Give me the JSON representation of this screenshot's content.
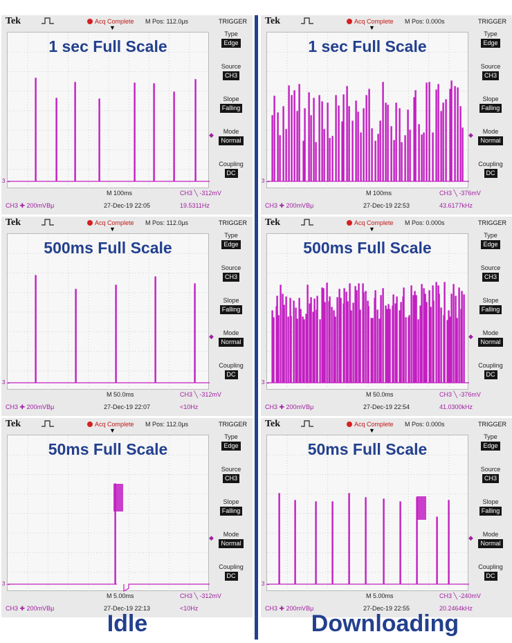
{
  "labels": {
    "left": "Idle",
    "right": "Downloading"
  },
  "common": {
    "brand": "Tek",
    "acq": "Acq Complete",
    "trigger": "TRIGGER",
    "menu": [
      {
        "label": "Type",
        "value": "Edge"
      },
      {
        "label": "Source",
        "value": "CH3"
      },
      {
        "label": "Slope",
        "value": "Falling"
      },
      {
        "label": "Mode",
        "value": "Normal"
      },
      {
        "label": "Coupling",
        "value": "DC"
      }
    ],
    "ch_scale": "CH3 ✚ 200mVΒμ",
    "gnd": "3→",
    "trig_arrow": "◆"
  },
  "panels": [
    {
      "id": "idle-1s",
      "title": "1 sec Full Scale",
      "mpos": "M Pos: 112.0μs",
      "timebase": "M 100ms",
      "date": "27-Dec-19 22:05",
      "trig": "CH3 ╲ -312mV",
      "freq": "19.5311Hz",
      "trace_color": "#c21fc2"
    },
    {
      "id": "dl-1s",
      "title": "1 sec Full Scale",
      "mpos": "M Pos: 0.000s",
      "timebase": "M 100ms",
      "date": "27-Dec-19 22:53",
      "trig": "CH3 ╲ -376mV",
      "freq": "43.6177kHz",
      "trace_color": "#c21fc2"
    },
    {
      "id": "idle-500ms",
      "title": "500ms Full Scale",
      "mpos": "M Pos: 112.0μs",
      "timebase": "M 50.0ms",
      "date": "27-Dec-19 22:07",
      "trig": "CH3 ╲ -312mV",
      "freq": "<10Hz",
      "trace_color": "#c21fc2"
    },
    {
      "id": "dl-500ms",
      "title": "500ms Full Scale",
      "mpos": "M Pos: 0.000s",
      "timebase": "M 50.0ms",
      "date": "27-Dec-19 22:54",
      "trig": "CH3 ╲ -376mV",
      "freq": "41.0300kHz",
      "trace_color": "#c21fc2"
    },
    {
      "id": "idle-50ms",
      "title": "50ms Full Scale",
      "mpos": "M Pos: 112.0μs",
      "timebase": "M 5.00ms",
      "date": "27-Dec-19 22:13",
      "trig": "CH3 ╲ -312mV",
      "freq": "<10Hz",
      "trace_color": "#c21fc2"
    },
    {
      "id": "dl-50ms",
      "title": "50ms Full Scale",
      "mpos": "M Pos: 0.000s",
      "timebase": "M 5.00ms",
      "date": "27-Dec-19 22:55",
      "trig": "CH3 ╲ -240mV",
      "freq": "20.2464kHz",
      "trace_color": "#c21fc2"
    }
  ]
}
